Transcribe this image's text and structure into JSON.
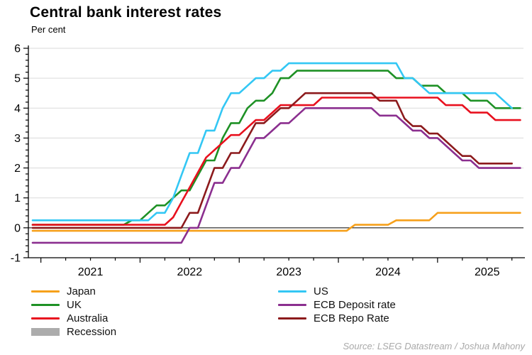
{
  "header": {
    "title": "Central bank interest rates",
    "subtitle": "Per cent"
  },
  "source": "Source: LSEG Datastream / Joshua Mahony",
  "colors": {
    "japan": "#F6A01B",
    "uk": "#1E9125",
    "australia": "#E8101E",
    "us": "#33C7F4",
    "ecb_deposit": "#8B2F8F",
    "ecb_repo": "#8C1A1C",
    "recession": "#ACACAC",
    "grid": "#DADADA",
    "axis": "#000000",
    "source_text": "#A9A9A9"
  },
  "legend": {
    "left": [
      {
        "id": "japan",
        "label": "Japan",
        "color_key": "japan",
        "swatch": "line"
      },
      {
        "id": "uk",
        "label": "UK",
        "color_key": "uk",
        "swatch": "line"
      },
      {
        "id": "australia",
        "label": "Australia",
        "color_key": "australia",
        "swatch": "line"
      },
      {
        "id": "recession",
        "label": "Recession",
        "color_key": "recession",
        "swatch": "box"
      }
    ],
    "right": [
      {
        "id": "us",
        "label": "US",
        "color_key": "us",
        "swatch": "line"
      },
      {
        "id": "ecb-deposit",
        "label": "ECB Deposit rate",
        "color_key": "ecb_deposit",
        "swatch": "line"
      },
      {
        "id": "ecb-repo",
        "label": "ECB Repo Rate",
        "color_key": "ecb_repo",
        "swatch": "line"
      }
    ]
  },
  "chart_data": {
    "type": "line",
    "title": "Central bank interest rates",
    "ylabel": "Per cent",
    "ylim": [
      -1,
      6
    ],
    "y_ticks": [
      -1,
      0,
      1,
      2,
      3,
      4,
      5,
      6
    ],
    "y_minor_step": 0.2,
    "grid": "horizontal",
    "zero_line": true,
    "x_start": "2020-12",
    "x_frequency": "monthly",
    "x_tick_years": [
      "2021",
      "2022",
      "2023",
      "2024",
      "2025"
    ],
    "x_minor_tick": "quarterly",
    "legend_position": "bottom",
    "series": [
      {
        "name": "Japan",
        "color_key": "japan",
        "values": [
          -0.1,
          -0.1,
          -0.1,
          -0.1,
          -0.1,
          -0.1,
          -0.1,
          -0.1,
          -0.1,
          -0.1,
          -0.1,
          -0.1,
          -0.1,
          -0.1,
          -0.1,
          -0.1,
          -0.1,
          -0.1,
          -0.1,
          -0.1,
          -0.1,
          -0.1,
          -0.1,
          -0.1,
          -0.1,
          -0.1,
          -0.1,
          -0.1,
          -0.1,
          -0.1,
          -0.1,
          -0.1,
          -0.1,
          -0.1,
          -0.1,
          -0.1,
          -0.1,
          -0.1,
          -0.1,
          0.1,
          0.1,
          0.1,
          0.1,
          0.1,
          0.25,
          0.25,
          0.25,
          0.25,
          0.25,
          0.5,
          0.5,
          0.5,
          0.5,
          0.5,
          0.5,
          0.5,
          0.5,
          0.5,
          0.5,
          0.5
        ]
      },
      {
        "name": "UK",
        "color_key": "uk",
        "values": [
          0.1,
          0.1,
          0.1,
          0.1,
          0.1,
          0.1,
          0.1,
          0.1,
          0.1,
          0.1,
          0.1,
          0.1,
          0.25,
          0.25,
          0.5,
          0.75,
          0.75,
          1.0,
          1.25,
          1.25,
          1.75,
          2.25,
          2.25,
          3.0,
          3.5,
          3.5,
          4.0,
          4.25,
          4.25,
          4.5,
          5.0,
          5.0,
          5.25,
          5.25,
          5.25,
          5.25,
          5.25,
          5.25,
          5.25,
          5.25,
          5.25,
          5.25,
          5.25,
          5.25,
          5.0,
          5.0,
          5.0,
          4.75,
          4.75,
          4.75,
          4.5,
          4.5,
          4.5,
          4.25,
          4.25,
          4.25,
          4.0,
          4.0,
          4.0,
          4.0
        ]
      },
      {
        "name": "Australia",
        "color_key": "australia",
        "values": [
          0.1,
          0.1,
          0.1,
          0.1,
          0.1,
          0.1,
          0.1,
          0.1,
          0.1,
          0.1,
          0.1,
          0.1,
          0.1,
          0.1,
          0.1,
          0.1,
          0.1,
          0.35,
          0.85,
          1.35,
          1.85,
          2.35,
          2.6,
          2.85,
          3.1,
          3.1,
          3.35,
          3.6,
          3.6,
          3.85,
          4.1,
          4.1,
          4.1,
          4.1,
          4.1,
          4.35,
          4.35,
          4.35,
          4.35,
          4.35,
          4.35,
          4.35,
          4.35,
          4.35,
          4.35,
          4.35,
          4.35,
          4.35,
          4.35,
          4.35,
          4.1,
          4.1,
          4.1,
          3.85,
          3.85,
          3.85,
          3.6,
          3.6,
          3.6,
          3.6
        ]
      },
      {
        "name": "US",
        "color_key": "us",
        "values": [
          0.25,
          0.25,
          0.25,
          0.25,
          0.25,
          0.25,
          0.25,
          0.25,
          0.25,
          0.25,
          0.25,
          0.25,
          0.25,
          0.25,
          0.25,
          0.5,
          0.5,
          1.0,
          1.75,
          2.5,
          2.5,
          3.25,
          3.25,
          4.0,
          4.5,
          4.5,
          4.75,
          5.0,
          5.0,
          5.25,
          5.25,
          5.5,
          5.5,
          5.5,
          5.5,
          5.5,
          5.5,
          5.5,
          5.5,
          5.5,
          5.5,
          5.5,
          5.5,
          5.5,
          5.5,
          5.0,
          5.0,
          4.75,
          4.5,
          4.5,
          4.5,
          4.5,
          4.5,
          4.5,
          4.5,
          4.5,
          4.5,
          4.25,
          4.0
        ]
      },
      {
        "name": "ECB Deposit rate",
        "color_key": "ecb_deposit",
        "values": [
          -0.5,
          -0.5,
          -0.5,
          -0.5,
          -0.5,
          -0.5,
          -0.5,
          -0.5,
          -0.5,
          -0.5,
          -0.5,
          -0.5,
          -0.5,
          -0.5,
          -0.5,
          -0.5,
          -0.5,
          -0.5,
          -0.5,
          0.0,
          0.0,
          0.75,
          1.5,
          1.5,
          2.0,
          2.0,
          2.5,
          3.0,
          3.0,
          3.25,
          3.5,
          3.5,
          3.75,
          4.0,
          4.0,
          4.0,
          4.0,
          4.0,
          4.0,
          4.0,
          4.0,
          4.0,
          3.75,
          3.75,
          3.75,
          3.5,
          3.25,
          3.25,
          3.0,
          3.0,
          2.75,
          2.5,
          2.25,
          2.25,
          2.0,
          2.0,
          2.0,
          2.0,
          2.0,
          2.0
        ]
      },
      {
        "name": "ECB Repo Rate",
        "color_key": "ecb_repo",
        "values": [
          0.0,
          0.0,
          0.0,
          0.0,
          0.0,
          0.0,
          0.0,
          0.0,
          0.0,
          0.0,
          0.0,
          0.0,
          0.0,
          0.0,
          0.0,
          0.0,
          0.0,
          0.0,
          0.0,
          0.5,
          0.5,
          1.25,
          2.0,
          2.0,
          2.5,
          2.5,
          3.0,
          3.5,
          3.5,
          3.75,
          4.0,
          4.0,
          4.25,
          4.5,
          4.5,
          4.5,
          4.5,
          4.5,
          4.5,
          4.5,
          4.5,
          4.5,
          4.25,
          4.25,
          4.25,
          3.65,
          3.4,
          3.4,
          3.15,
          3.15,
          2.9,
          2.65,
          2.4,
          2.4,
          2.15,
          2.15,
          2.15,
          2.15,
          2.15
        ]
      }
    ]
  }
}
